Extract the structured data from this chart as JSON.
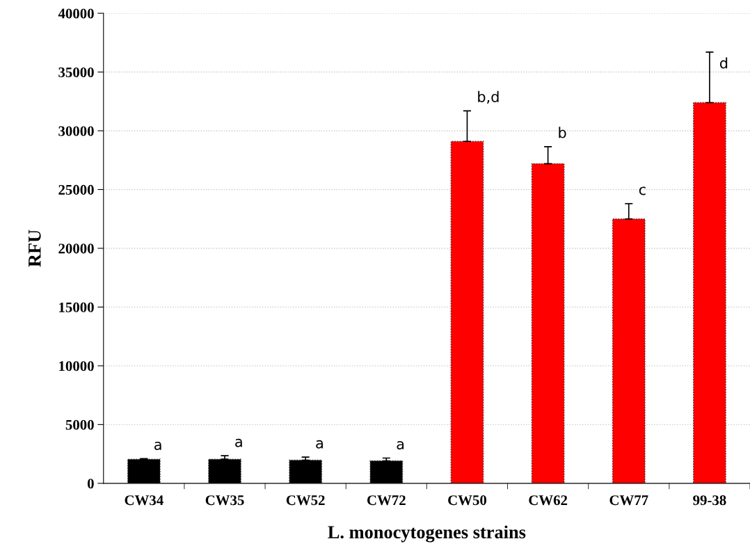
{
  "chart_data": {
    "type": "bar",
    "xlabel": "L. monocytogenes strains",
    "ylabel": "RFU",
    "categories": [
      "CW34",
      "CW35",
      "CW52",
      "CW72",
      "CW50",
      "CW62",
      "CW77",
      "99-38"
    ],
    "values": [
      2050,
      2050,
      1970,
      1910,
      29100,
      27200,
      22500,
      32400
    ],
    "colors": [
      "#000000",
      "#000000",
      "#000000",
      "#000000",
      "#ff0000",
      "#ff0000",
      "#ff0000",
      "#ff0000"
    ],
    "errors": [
      [
        2050,
        2100
      ],
      [
        2050,
        2350
      ],
      [
        1970,
        2230
      ],
      [
        1910,
        2150
      ],
      [
        29100,
        31700
      ],
      [
        27200,
        28650
      ],
      [
        22500,
        23800
      ],
      [
        32400,
        36700
      ]
    ],
    "ylim": [
      0,
      40000
    ],
    "yticks": [
      0,
      5000,
      10000,
      15000,
      20000,
      25000,
      30000,
      35000,
      40000
    ],
    "grid": "y",
    "annotations": [
      {
        "text": "a",
        "x": "CW34",
        "y": 2050
      },
      {
        "text": "a",
        "x": "CW35",
        "y": 2050
      },
      {
        "text": "a",
        "x": "CW52",
        "y": 1970
      },
      {
        "text": "a",
        "x": "CW72",
        "y": 1910
      },
      {
        "text": "b,d",
        "x": "CW50",
        "y": 29100
      },
      {
        "text": "b",
        "x": "CW62",
        "y": 27200
      },
      {
        "text": "c",
        "x": "CW77",
        "y": 22500
      },
      {
        "text": "d",
        "x": "99-38",
        "y": 32400
      }
    ]
  }
}
